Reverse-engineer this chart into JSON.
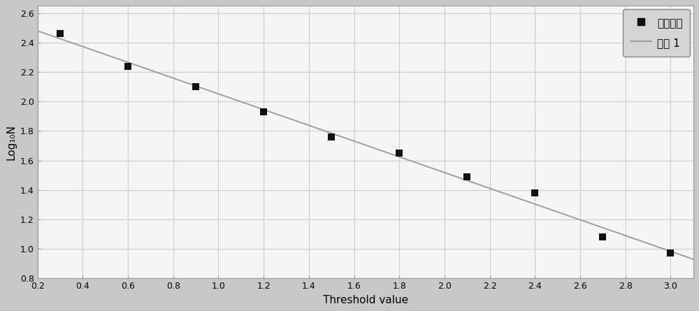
{
  "scatter_x": [
    0.3,
    0.6,
    0.9,
    1.2,
    1.5,
    1.8,
    2.1,
    2.4,
    2.7,
    3.0
  ],
  "scatter_y": [
    2.46,
    2.24,
    2.1,
    1.93,
    1.76,
    1.65,
    1.49,
    1.38,
    1.08,
    0.97
  ],
  "line_x": [
    0.2,
    3.1
  ],
  "line_y": [
    2.48,
    0.93
  ],
  "xlabel": "Threshold value",
  "ylabel": "Log₁₀N",
  "xlim": [
    0.2,
    3.1
  ],
  "ylim": [
    0.8,
    2.65
  ],
  "xticks": [
    0.2,
    0.4,
    0.6,
    0.8,
    1.0,
    1.2,
    1.4,
    1.6,
    1.8,
    2.0,
    2.2,
    2.4,
    2.6,
    2.8,
    3.0
  ],
  "yticks": [
    0.8,
    1.0,
    1.2,
    1.4,
    1.6,
    1.8,
    2.0,
    2.2,
    2.4,
    2.6
  ],
  "legend_label1": "原始数据",
  "legend_label2": "曲线 1",
  "outer_bg_color": "#c8c8c8",
  "plot_bg_color": "#f5f5f5",
  "line_color": "#999999",
  "scatter_color": "#111111",
  "grid_color": "#cccccc",
  "legend_bg_color": "#d4d4d4",
  "legend_border_color": "#888888",
  "spine_color": "#999999"
}
